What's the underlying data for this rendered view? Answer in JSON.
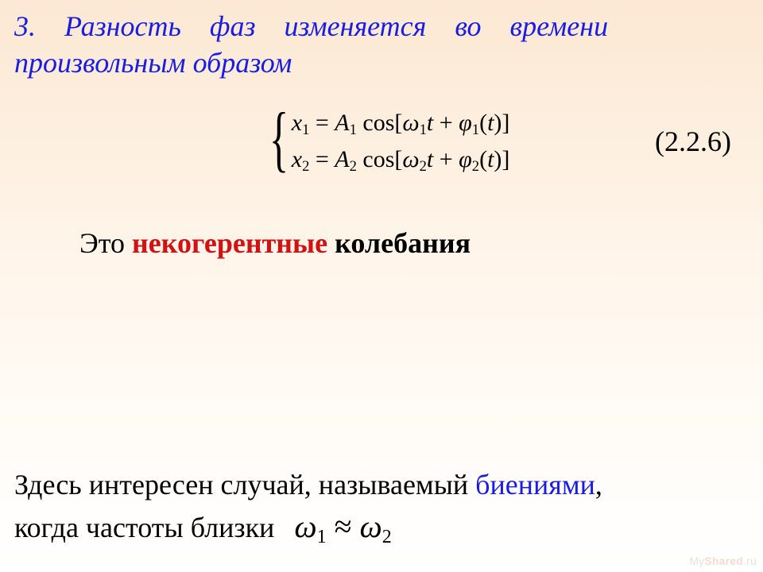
{
  "colors": {
    "heading": "#1a1de0",
    "body_text": "#000000",
    "emphasis_red": "#d21212",
    "link_blue": "#1a1de0",
    "background_top": "#fce8d4",
    "background_bottom": "#ffffff"
  },
  "typography": {
    "family": "Times New Roman",
    "heading_fontsize_pt": 27,
    "body_fontsize_pt": 27,
    "equation_fontsize_pt": 22,
    "heading_style": "italic"
  },
  "heading": {
    "line1": "3. Разность фаз изменяется во времени",
    "line2": "произвольным образом"
  },
  "equation": {
    "number": "(2.2.6)",
    "system": {
      "line1": {
        "lhs_var": "x",
        "lhs_sub": "1",
        "rhs_A": "A",
        "rhs_A_sub": "1",
        "omega_sub": "1",
        "phi_sub": "1"
      },
      "line2": {
        "lhs_var": "x",
        "lhs_sub": "2",
        "rhs_A": "A",
        "rhs_A_sub": "2",
        "omega_sub": "2",
        "phi_sub": "2"
      }
    }
  },
  "statement": {
    "prefix": "Это ",
    "red": "некогерентные",
    "suffix": " колебания"
  },
  "bottom": {
    "line1_a": "Здесь интересен случай, называемый ",
    "line1_blue": "биениями",
    "line1_b": ",",
    "line2_a": "когда частоты близки",
    "relation": {
      "omega1_sub": "1",
      "omega2_sub": "2",
      "symbol": "≈"
    }
  },
  "watermark": {
    "a": "My",
    "b": "Shared",
    "c": ".ru"
  }
}
